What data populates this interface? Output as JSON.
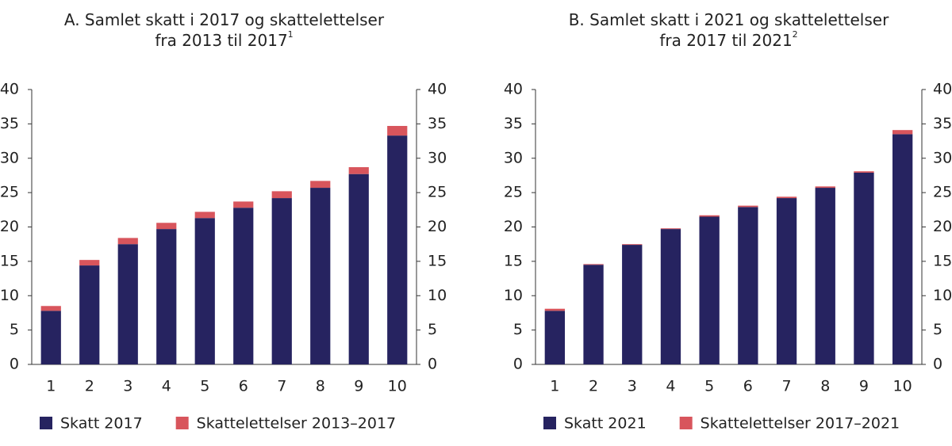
{
  "chart_data": [
    {
      "type": "bar",
      "stacked": true,
      "title": [
        "A. Samlet skatt i 2017 og skattelettelser",
        "fra 2013 til 2017"
      ],
      "title_superscript": "1",
      "categories": [
        "1",
        "2",
        "3",
        "4",
        "5",
        "6",
        "7",
        "8",
        "9",
        "10"
      ],
      "series": [
        {
          "name": "Skatt 2017",
          "color": "#262360",
          "values": [
            7.8,
            14.4,
            17.5,
            19.7,
            21.3,
            22.8,
            24.2,
            25.7,
            27.7,
            33.3
          ]
        },
        {
          "name": "Skattelettelser 2013–2017",
          "color": "#d8555c",
          "values": [
            0.7,
            0.8,
            0.9,
            0.9,
            0.9,
            0.9,
            1.0,
            1.0,
            1.0,
            1.4
          ]
        }
      ],
      "ylim": [
        0,
        40
      ],
      "yticks": [
        0,
        5,
        10,
        15,
        20,
        25,
        30,
        35,
        40
      ],
      "grid": false
    },
    {
      "type": "bar",
      "stacked": true,
      "title": [
        "B. Samlet skatt i 2021 og skattelettelser",
        "fra 2017 til 2021"
      ],
      "title_superscript": "2",
      "categories": [
        "1",
        "2",
        "3",
        "4",
        "5",
        "6",
        "7",
        "8",
        "9",
        "10"
      ],
      "series": [
        {
          "name": "Skatt 2021",
          "color": "#262360",
          "values": [
            7.8,
            14.5,
            17.4,
            19.7,
            21.5,
            22.9,
            24.2,
            25.7,
            27.9,
            33.5
          ]
        },
        {
          "name": "Skattelettelser 2017–2021",
          "color": "#d8555c",
          "values": [
            0.3,
            0.1,
            0.1,
            0.1,
            0.2,
            0.2,
            0.2,
            0.2,
            0.2,
            0.6
          ]
        }
      ],
      "ylim": [
        0,
        40
      ],
      "yticks": [
        0,
        5,
        10,
        15,
        20,
        25,
        30,
        35,
        40
      ],
      "grid": false
    }
  ]
}
